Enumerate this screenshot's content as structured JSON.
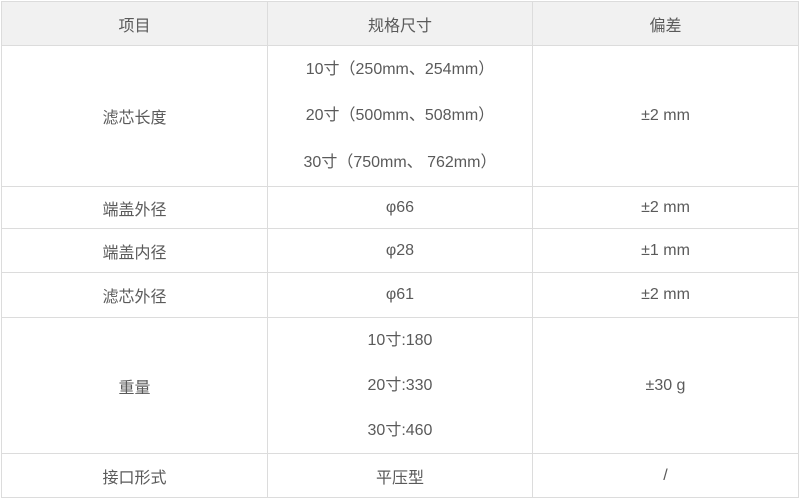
{
  "theme": {
    "header_bg": "#f1f1f1",
    "border": "#dcdcdc",
    "text": "#5a5a5a"
  },
  "table": {
    "columns": [
      "项目",
      "规格尺寸",
      "偏差"
    ],
    "rows": [
      {
        "item": "滤芯长度",
        "spec_lines": [
          "10寸（250mm、254mm）",
          "20寸（500mm、508mm）",
          "30寸（750mm、 762mm）"
        ],
        "deviation": "±2 mm"
      },
      {
        "item": "端盖外径",
        "spec_lines": [
          "φ66"
        ],
        "deviation": "±2 mm"
      },
      {
        "item": "端盖内径",
        "spec_lines": [
          "φ28"
        ],
        "deviation": "±1 mm"
      },
      {
        "item": "滤芯外径",
        "spec_lines": [
          "φ61"
        ],
        "deviation": "±2 mm"
      },
      {
        "item": "重量",
        "spec_lines": [
          "10寸:180",
          "20寸:330",
          "30寸:460"
        ],
        "deviation": "±30 g"
      },
      {
        "item": "接口形式",
        "spec_lines": [
          "平压型"
        ],
        "deviation": "/"
      }
    ]
  }
}
